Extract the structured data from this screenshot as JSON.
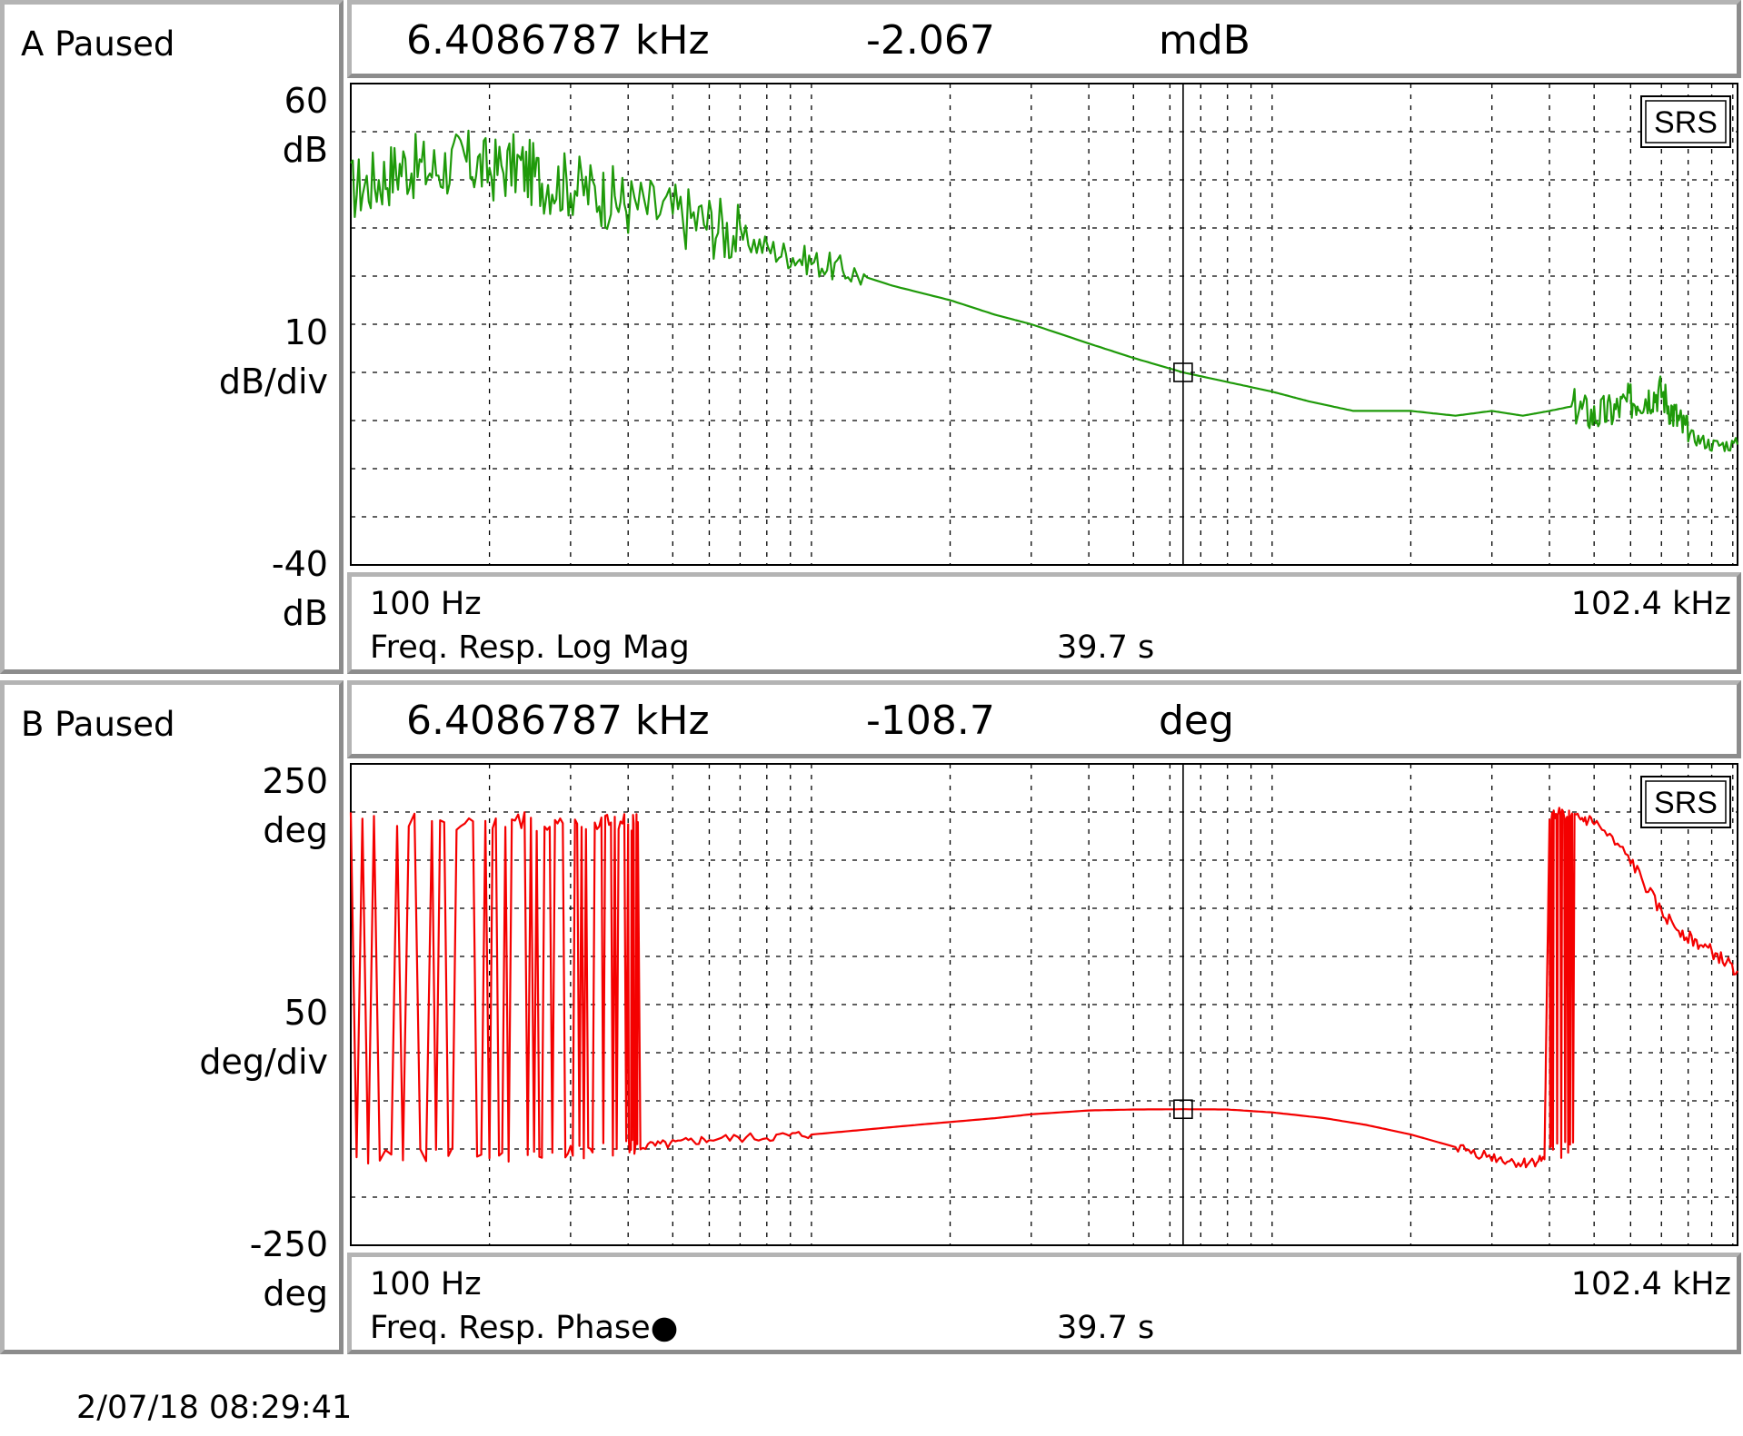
{
  "timestamp": "2/07/18  08:29:41",
  "colors": {
    "trace_a": "#1f9a0a",
    "trace_b": "#f40000",
    "frame_light": "#b4b4b4",
    "frame_dark": "#8c8c8c"
  },
  "panels": [
    {
      "status": "A Paused",
      "y_top": "60",
      "y_top_unit": "dB",
      "y_scale": "10",
      "y_scale_unit": "dB/div",
      "y_bottom": "-40",
      "y_bottom_unit": "dB",
      "marker_freq": "6.4086787 kHz",
      "marker_value": "-2.067",
      "marker_unit": "mdB",
      "x_start": "100 Hz",
      "x_end": "102.4 kHz",
      "measurement": "Freq. Resp. Log Mag",
      "time": "39.7 s",
      "logo": "SRS"
    },
    {
      "status": "B Paused",
      "y_top": "250",
      "y_top_unit": "deg",
      "y_scale": "50",
      "y_scale_unit": "deg/div",
      "y_bottom": "-250",
      "y_bottom_unit": "deg",
      "marker_freq": "6.4086787 kHz",
      "marker_value": "-108.7",
      "marker_unit": "deg",
      "x_start": "100 Hz",
      "x_end": "102.4 kHz",
      "measurement": "Freq. Resp. Phase●",
      "time": "39.7 s",
      "logo": "SRS"
    }
  ],
  "chart_data": [
    {
      "type": "line",
      "x_scale": "log",
      "xlim": [
        100,
        102400
      ],
      "ylim": [
        -40,
        60
      ],
      "y_divisions": 10,
      "grid": true,
      "marker": {
        "x": 6408.6787,
        "y": -0.002067
      },
      "series": [
        {
          "x": [
            100,
            115,
            130,
            150,
            175,
            200,
            230,
            260,
            300,
            350,
            400,
            500,
            600,
            700,
            850,
            1000,
            1200,
            1500,
            2000,
            2500,
            3000,
            4000,
            5000,
            6408.6787,
            8000,
            10000,
            12000,
            15000,
            20000,
            25000,
            30000,
            35000,
            40000,
            45000,
            50000,
            55000,
            60000,
            65000,
            70000,
            75000,
            80000,
            90000,
            102400
          ],
          "y": [
            38,
            40,
            43,
            42,
            44,
            42,
            43,
            40,
            39,
            37,
            35,
            33,
            31,
            28,
            25,
            23,
            21,
            18,
            15,
            12,
            10,
            6,
            3,
            0,
            -2,
            -4,
            -6,
            -8,
            -8,
            -9,
            -8,
            -9,
            -8,
            -7,
            -9,
            -8,
            -6,
            -5,
            -4,
            -9,
            -13,
            -15,
            -15
          ]
        }
      ]
    },
    {
      "type": "line",
      "x_scale": "log",
      "xlim": [
        100,
        102400
      ],
      "ylim": [
        -250,
        250
      ],
      "y_divisions": 10,
      "grid": true,
      "marker": {
        "x": 6408.6787,
        "y": -108.7
      },
      "series": [
        {
          "x": [
            100,
            150,
            200,
            250,
            300,
            350,
            400,
            420,
            500,
            600,
            800,
            1000,
            1300,
            1600,
            2000,
            2500,
            3000,
            4000,
            5000,
            6408.6787,
            8000,
            10000,
            13000,
            16000,
            20000,
            25000,
            30000,
            35000,
            39000,
            40000,
            42000,
            45000,
            50000,
            60000,
            70000,
            80000,
            90000,
            102400
          ],
          "y": [
            -160,
            -155,
            -158,
            -160,
            -155,
            -152,
            -150,
            -148,
            -145,
            -140,
            -138,
            -135,
            -130,
            -126,
            -122,
            -118,
            -114,
            -110,
            -109,
            -108.7,
            -109,
            -112,
            -118,
            -125,
            -135,
            -148,
            -158,
            -165,
            -160,
            195,
            200,
            195,
            190,
            150,
            95,
            70,
            55,
            35
          ]
        }
      ]
    }
  ]
}
